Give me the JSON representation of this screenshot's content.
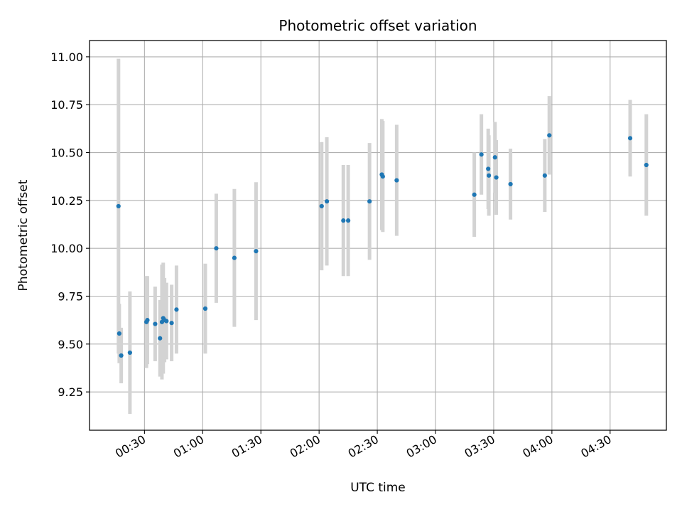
{
  "chart_data": {
    "type": "scatter",
    "title": "Photometric offset variation",
    "xlabel": "UTC time",
    "ylabel": "Photometric offset",
    "x_ticks": [
      "00:30",
      "01:00",
      "01:30",
      "02:00",
      "02:30",
      "03:00",
      "03:30",
      "04:00",
      "04:30"
    ],
    "y_ticks": [
      "9.25",
      "9.50",
      "9.75",
      "10.00",
      "10.25",
      "10.50",
      "10.75",
      "11.00"
    ],
    "xlim": [
      "00:01:40",
      "04:59:00"
    ],
    "ylim": [
      9.05,
      11.085
    ],
    "grid": true,
    "colors": {
      "marker": "#1f77b4",
      "errorbar": "#d3d3d3",
      "grid": "#b0b0b0"
    },
    "points": [
      {
        "x": "00:16:36",
        "y": 10.22,
        "err": 0.77
      },
      {
        "x": "00:17:00",
        "y": 9.555,
        "err": 0.155
      },
      {
        "x": "00:18:00",
        "y": 9.44,
        "err": 0.145
      },
      {
        "x": "00:22:30",
        "y": 9.455,
        "err": 0.32
      },
      {
        "x": "00:31:00",
        "y": 9.615,
        "err": 0.24
      },
      {
        "x": "00:31:30",
        "y": 9.625,
        "err": 0.23
      },
      {
        "x": "00:35:30",
        "y": 9.605,
        "err": 0.195
      },
      {
        "x": "00:38:00",
        "y": 9.53,
        "err": 0.2
      },
      {
        "x": "00:39:00",
        "y": 9.615,
        "err": 0.3
      },
      {
        "x": "00:39:40",
        "y": 9.635,
        "err": 0.29
      },
      {
        "x": "00:40:20",
        "y": 9.625,
        "err": 0.22
      },
      {
        "x": "00:41:20",
        "y": 9.62,
        "err": 0.2
      },
      {
        "x": "00:44:00",
        "y": 9.61,
        "err": 0.2
      },
      {
        "x": "00:46:30",
        "y": 9.68,
        "err": 0.23
      },
      {
        "x": "01:01:20",
        "y": 9.685,
        "err": 0.235
      },
      {
        "x": "01:07:00",
        "y": 10.0,
        "err": 0.285
      },
      {
        "x": "01:16:20",
        "y": 9.95,
        "err": 0.36
      },
      {
        "x": "01:27:30",
        "y": 9.985,
        "err": 0.36
      },
      {
        "x": "02:01:20",
        "y": 10.22,
        "err": 0.335
      },
      {
        "x": "02:04:00",
        "y": 10.245,
        "err": 0.335
      },
      {
        "x": "02:12:30",
        "y": 10.145,
        "err": 0.29
      },
      {
        "x": "02:15:00",
        "y": 10.145,
        "err": 0.29
      },
      {
        "x": "02:26:00",
        "y": 10.245,
        "err": 0.305
      },
      {
        "x": "02:32:20",
        "y": 10.385,
        "err": 0.29
      },
      {
        "x": "02:32:50",
        "y": 10.375,
        "err": 0.29
      },
      {
        "x": "02:40:00",
        "y": 10.355,
        "err": 0.29
      },
      {
        "x": "03:20:00",
        "y": 10.28,
        "err": 0.22
      },
      {
        "x": "03:23:40",
        "y": 10.49,
        "err": 0.21
      },
      {
        "x": "03:27:10",
        "y": 10.415,
        "err": 0.21
      },
      {
        "x": "03:27:30",
        "y": 10.38,
        "err": 0.21
      },
      {
        "x": "03:30:40",
        "y": 10.475,
        "err": 0.185
      },
      {
        "x": "03:31:20",
        "y": 10.37,
        "err": 0.195
      },
      {
        "x": "03:38:40",
        "y": 10.335,
        "err": 0.185
      },
      {
        "x": "03:56:20",
        "y": 10.38,
        "err": 0.19
      },
      {
        "x": "03:58:40",
        "y": 10.59,
        "err": 0.205
      },
      {
        "x": "04:40:20",
        "y": 10.575,
        "err": 0.2
      },
      {
        "x": "04:48:40",
        "y": 10.435,
        "err": 0.265
      }
    ]
  }
}
